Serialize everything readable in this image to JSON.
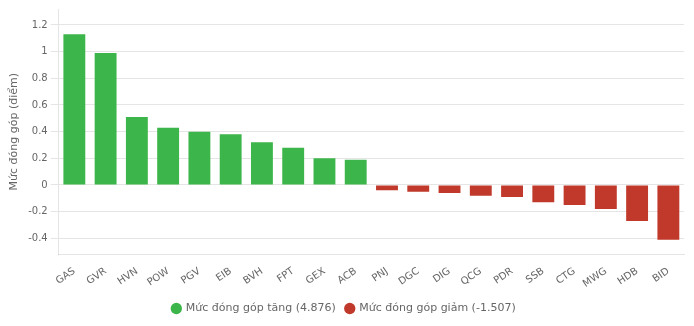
{
  "chart_data": {
    "type": "bar",
    "categories": [
      "GAS",
      "GVR",
      "HVN",
      "POW",
      "PGV",
      "EIB",
      "BVH",
      "FPT",
      "GEX",
      "ACB",
      "PNJ",
      "DGC",
      "DIG",
      "QCG",
      "PDR",
      "SSB",
      "CTG",
      "MWG",
      "HDB",
      "BID"
    ],
    "series": [
      {
        "name": "Mức đóng góp tăng (4.876)",
        "color": "#3cb54a",
        "values": [
          1.13,
          0.99,
          0.51,
          0.43,
          0.4,
          0.38,
          0.32,
          0.28,
          0.2,
          0.19,
          null,
          null,
          null,
          null,
          null,
          null,
          null,
          null,
          null,
          null
        ]
      },
      {
        "name": "Mức đóng góp giảm (-1.507)",
        "color": "#c0392b",
        "values": [
          null,
          null,
          null,
          null,
          null,
          null,
          null,
          null,
          null,
          null,
          -0.04,
          -0.05,
          -0.06,
          -0.08,
          -0.09,
          -0.13,
          -0.15,
          -0.18,
          -0.27,
          -0.41
        ]
      }
    ],
    "ylabel": "Mức đóng góp (điểm)",
    "ylim": [
      -0.52,
      1.32
    ],
    "yticks": [
      -0.4,
      -0.2,
      0,
      0.2,
      0.4,
      0.6,
      0.8,
      1,
      1.2
    ],
    "grid": true,
    "legend": "bottom"
  }
}
